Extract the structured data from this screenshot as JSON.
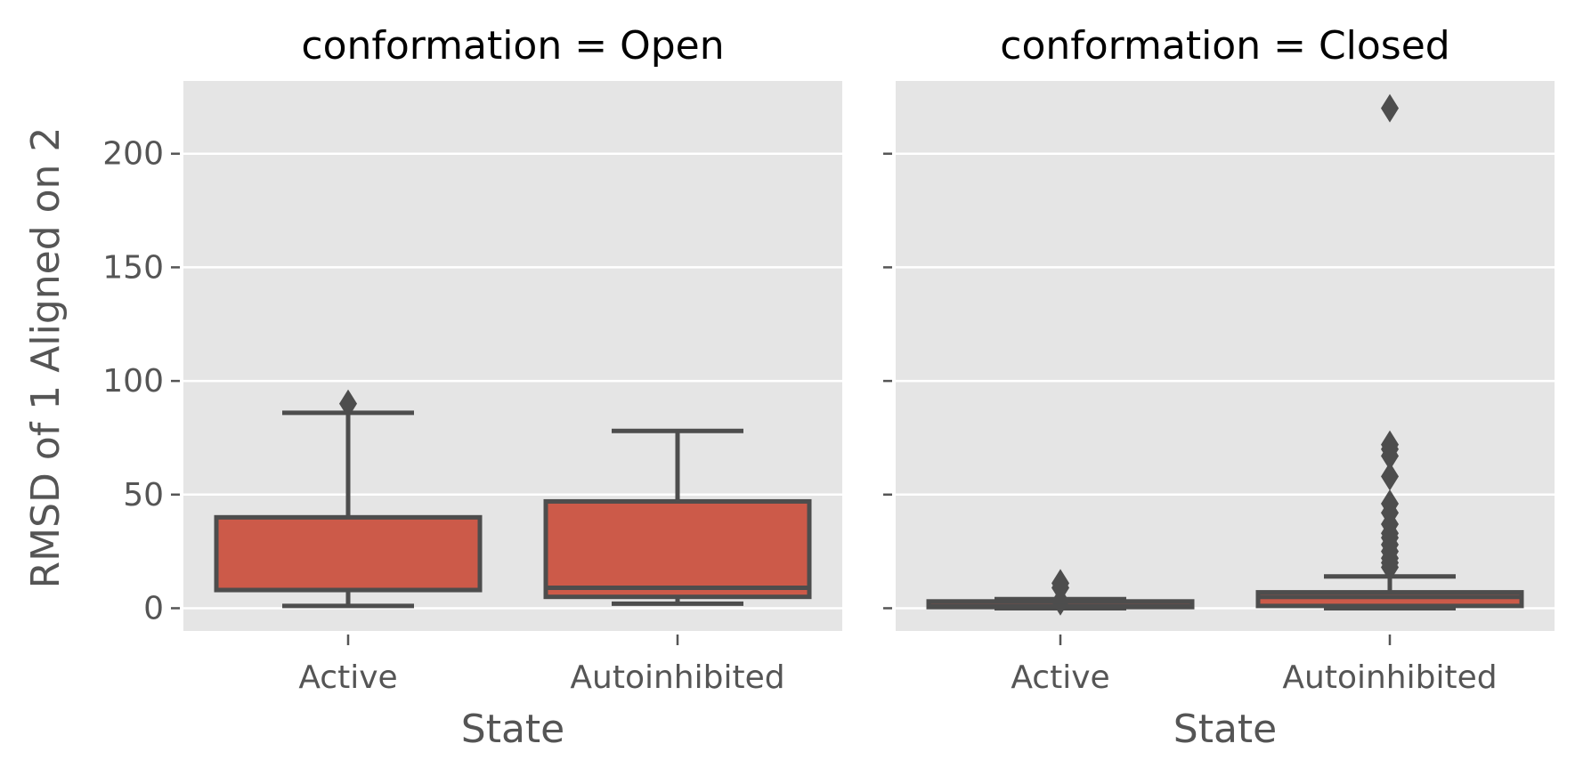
{
  "colors": {
    "panel_bg": "#E5E5E5",
    "grid": "#FFFFFF",
    "box_fill": "#CC5A49",
    "box_edge": "#4D4D4D",
    "text_dark": "#000000",
    "text_tick": "#555555"
  },
  "chart_data": {
    "type": "box",
    "ylabel": "RMSD of 1 Aligned on 2",
    "ylim": [
      -10,
      232
    ],
    "yticks": [
      0,
      50,
      100,
      150,
      200
    ],
    "ytick_labels": [
      "0",
      "50",
      "100",
      "150",
      "200"
    ],
    "grid": true,
    "shared_y": true,
    "panels": [
      {
        "title": "conformation = Open",
        "xlabel": "State",
        "categories": [
          "Active",
          "Autoinhibited"
        ],
        "boxes": [
          {
            "category": "Active",
            "whisker_low": 1,
            "q1": 8,
            "median": 8,
            "q3": 40,
            "whisker_high": 86,
            "outliers": [
              90
            ]
          },
          {
            "category": "Autoinhibited",
            "whisker_low": 2,
            "q1": 5,
            "median": 9,
            "q3": 47,
            "whisker_high": 78,
            "outliers": []
          }
        ]
      },
      {
        "title": "conformation = Closed",
        "xlabel": "State",
        "categories": [
          "Active",
          "Autoinhibited"
        ],
        "boxes": [
          {
            "category": "Active",
            "whisker_low": 0,
            "q1": 0.5,
            "median": 1,
            "q3": 3,
            "whisker_high": 4,
            "outliers": [
              3,
              9,
              11
            ]
          },
          {
            "category": "Autoinhibited",
            "whisker_low": 0,
            "q1": 1,
            "median": 5,
            "q3": 7,
            "whisker_high": 14,
            "outliers": [
              18,
              20,
              22,
              25,
              28,
              31,
              33,
              37,
              42,
              46,
              58,
              67,
              70,
              72,
              220
            ]
          }
        ]
      }
    ]
  }
}
